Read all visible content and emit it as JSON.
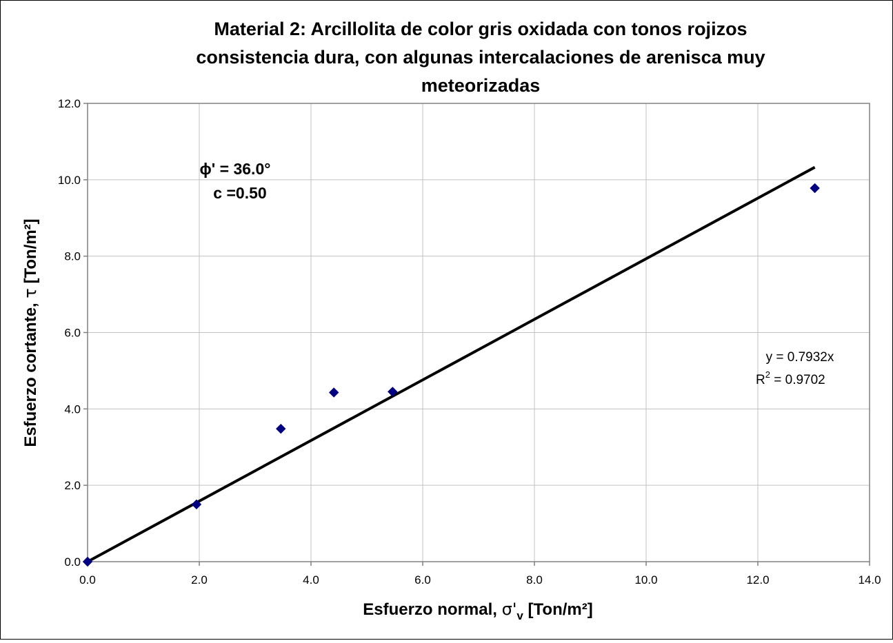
{
  "chart_data": {
    "type": "scatter",
    "title_lines": [
      "Material 2: Arcillolita de color gris oxidada con tonos rojizos",
      "consistencia dura, con algunas intercalaciones de arenisca muy",
      "meteorizadas"
    ],
    "xlabel": {
      "prefix": "Esfuerzo normal, ",
      "symbol": "σ'",
      "subscript": "v",
      "suffix": " [Ton/m²]"
    },
    "ylabel": {
      "prefix": "Esfuerzo cortante, ",
      "symbol": "τ",
      "suffix": " [Ton/m²]"
    },
    "xlim": [
      0,
      14
    ],
    "ylim": [
      0,
      12
    ],
    "x_ticks": [
      "0.0",
      "2.0",
      "4.0",
      "6.0",
      "8.0",
      "10.0",
      "12.0",
      "14.0"
    ],
    "y_ticks": [
      "0.0",
      "2.0",
      "4.0",
      "6.0",
      "8.0",
      "10.0",
      "12.0"
    ],
    "grid": true,
    "marker_color": "#000080",
    "line_color": "#000000",
    "series": [
      {
        "marker": "diamond",
        "points": [
          {
            "x": 0.0,
            "y": 0.0
          },
          {
            "x": 1.95,
            "y": 1.5
          },
          {
            "x": 3.46,
            "y": 3.48
          },
          {
            "x": 4.41,
            "y": 4.43
          },
          {
            "x": 5.46,
            "y": 4.45
          },
          {
            "x": 13.02,
            "y": 9.78
          }
        ]
      }
    ],
    "trendline": {
      "slope": 0.7932,
      "x_range": [
        0,
        13.02
      ],
      "equation": "y = 0.7932x",
      "r2_prefix": "R",
      "r2_sup": "2",
      "r2_suffix": " = 0.9702"
    },
    "annotations": {
      "phi": "ϕ' = 36.0°",
      "c": "c =0.50"
    }
  }
}
